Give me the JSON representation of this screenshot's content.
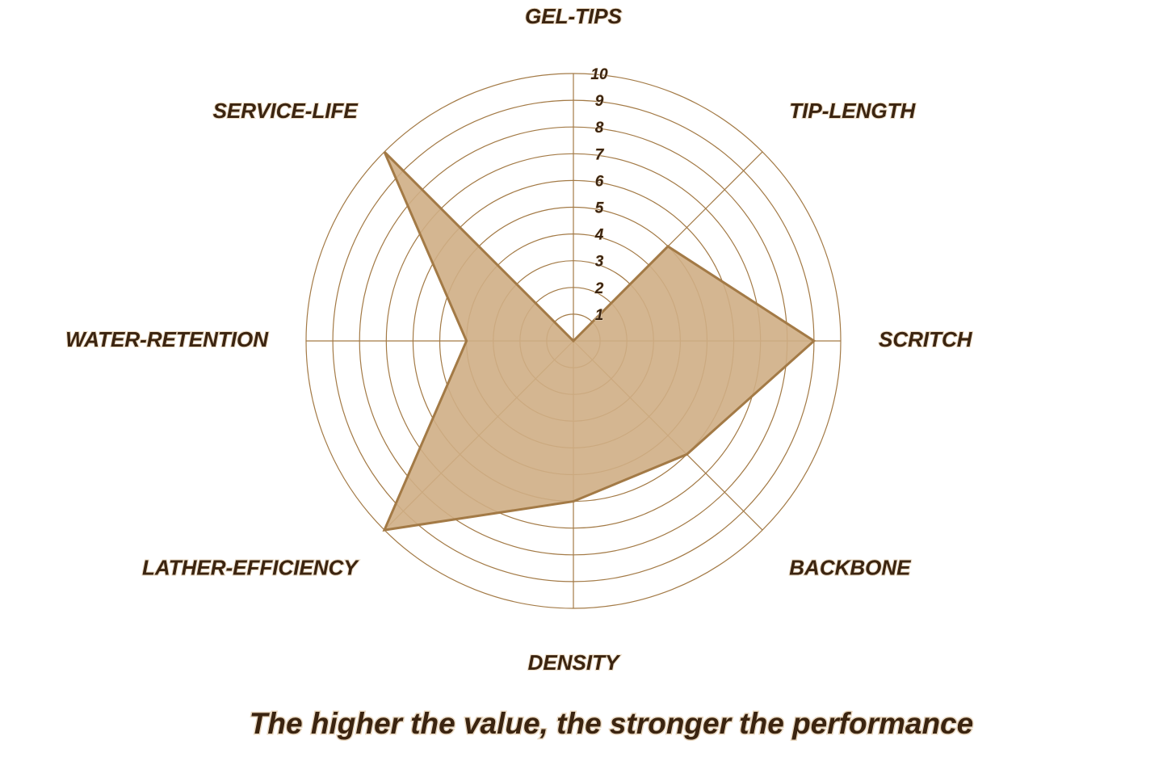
{
  "chart_data": {
    "type": "radar",
    "caption": "The higher the value, the stronger the performance",
    "categories": [
      "GEL-TIPS",
      "TIP-LENGTH",
      "SCRITCH",
      "BACKBONE",
      "DENSITY",
      "LATHER-EFFICIENCY",
      "WATER-RETENTION",
      "SERVICE-LIFE"
    ],
    "values": [
      0,
      5,
      9,
      6,
      6,
      10,
      4,
      10
    ],
    "color": "#a37a46",
    "fill": "#cfae85",
    "ylim": [
      0,
      10
    ],
    "yticks": [
      1,
      2,
      3,
      4,
      5,
      6,
      7,
      8,
      9,
      10
    ],
    "grid": true
  }
}
